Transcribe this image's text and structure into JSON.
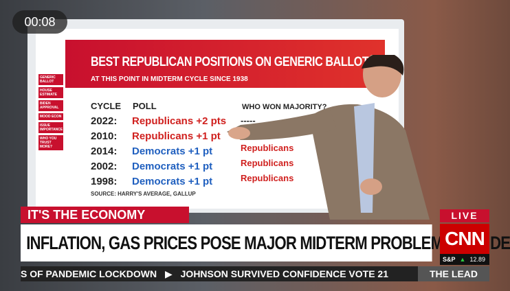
{
  "timestamp": "00:08",
  "board": {
    "title": "BEST REPUBLICAN POSITIONS ON GENERIC BALLOT",
    "subtitle": "AT THIS POINT IN MIDTERM CYCLE SINCE 1938",
    "headers": [
      "CYCLE",
      "POLL",
      "WHO WON MAJORITY?"
    ],
    "rows": [
      {
        "cycle": "2022:",
        "poll": "Republicans +2 pts",
        "winner": "-----"
      },
      {
        "cycle": "2010:",
        "poll": "Republicans +1 pt"
      },
      {
        "cycle": "2014:",
        "poll": "Democrats +1 pt",
        "winner": "Republicans"
      },
      {
        "cycle": "2002:",
        "poll": "Democrats +1 pt",
        "winner": "Republicans"
      },
      {
        "cycle": "1998:",
        "poll": "Democrats +1 pt",
        "winner": "Republicans"
      }
    ],
    "source": "SOURCE: HARRY'S AVERAGE, GALLUP",
    "menu": [
      "GENERIC BALLOT",
      "HOUSE ESTIMATE",
      "BIDEN APPROVAL",
      "MOOD ECON",
      "ISSUE IMPORTANCE",
      "WHO YOU TRUST MORE?"
    ]
  },
  "banner": {
    "kicker": "IT'S THE ECONOMY",
    "headline": "INFLATION, GAS PRICES POSE MAJOR MIDTERM PROBLEMS FOR DEMS"
  },
  "live": "LIVE",
  "network": "CNN",
  "market": {
    "index": "S&P",
    "change": "12.89"
  },
  "crawl": [
    "S OF PANDEMIC LOCKDOWN",
    "JOHNSON SURVIVED CONFIDENCE VOTE 21"
  ],
  "show": "THE LEAD"
}
